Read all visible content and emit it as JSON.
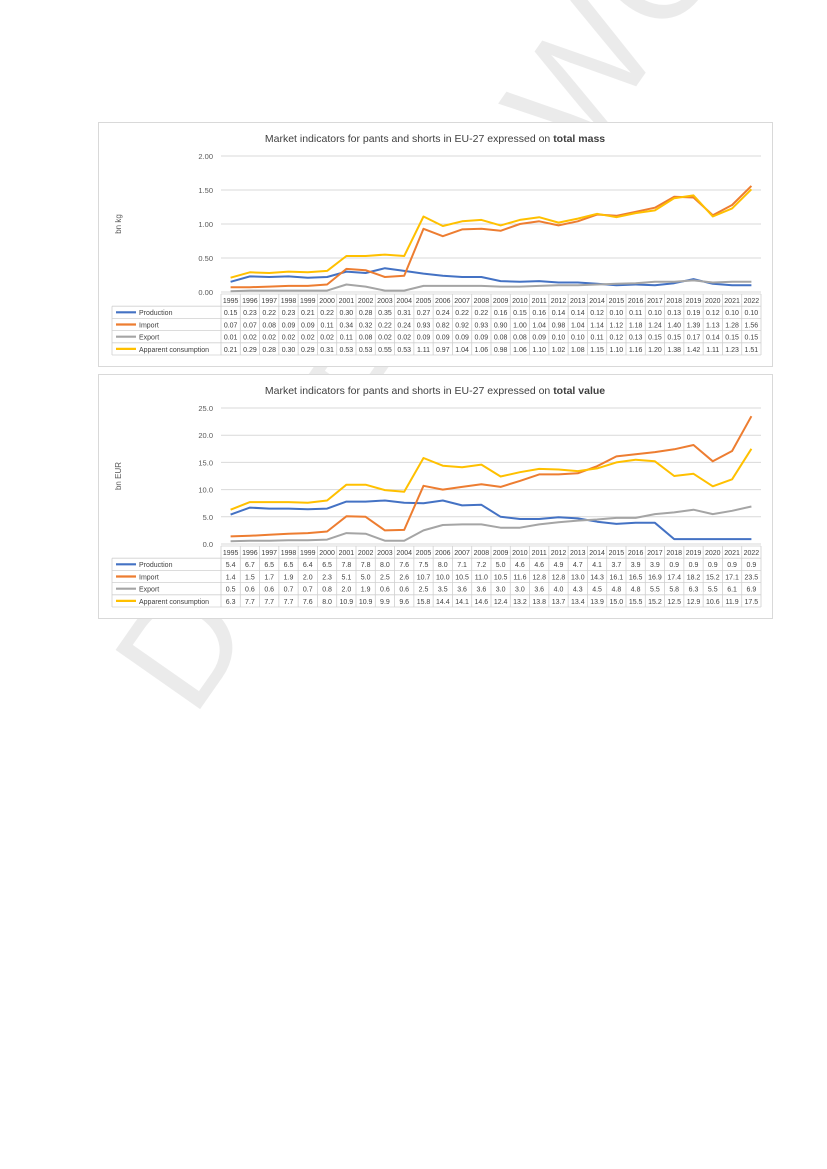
{
  "watermark": "DRAFT - WO",
  "chart_data": [
    {
      "type": "line",
      "title_prefix": "Market indicators for pants and shorts in EU-27 expressed on ",
      "title_bold": "total mass",
      "ylabel": "bn kg",
      "ylim": [
        0,
        2
      ],
      "yticks": [
        "0.00",
        "0.50",
        "1.00",
        "1.50",
        "2.00"
      ],
      "tick_values": [
        0,
        0.5,
        1,
        1.5,
        2
      ],
      "grid": true,
      "legend_placement": "table-below",
      "x": [
        "1995",
        "1996",
        "1997",
        "1998",
        "1999",
        "2000",
        "2001",
        "2002",
        "2003",
        "2004",
        "2005",
        "2006",
        "2007",
        "2008",
        "2009",
        "2010",
        "2011",
        "2012",
        "2013",
        "2014",
        "2015",
        "2016",
        "2017",
        "2018",
        "2019",
        "2020",
        "2021",
        "2022"
      ],
      "series": [
        {
          "name": "Production",
          "color": "#4472c4",
          "values": [
            0.15,
            0.23,
            0.22,
            0.23,
            0.21,
            0.22,
            0.3,
            0.28,
            0.35,
            0.31,
            0.27,
            0.24,
            0.22,
            0.22,
            0.16,
            0.15,
            0.16,
            0.14,
            0.14,
            0.12,
            0.1,
            0.11,
            0.1,
            0.13,
            0.19,
            0.12,
            0.1,
            0.1
          ],
          "labels": [
            "0.15",
            "0.23",
            "0.22",
            "0.23",
            "0.21",
            "0.22",
            "0.30",
            "0.28",
            "0.35",
            "0.31",
            "0.27",
            "0.24",
            "0.22",
            "0.22",
            "0.16",
            "0.15",
            "0.16",
            "0.14",
            "0.14",
            "0.12",
            "0.10",
            "0.11",
            "0.10",
            "0.13",
            "0.19",
            "0.12",
            "0.10",
            "0.10"
          ]
        },
        {
          "name": "Import",
          "color": "#ed7d31",
          "values": [
            0.07,
            0.07,
            0.08,
            0.09,
            0.09,
            0.11,
            0.34,
            0.32,
            0.22,
            0.24,
            0.93,
            0.82,
            0.92,
            0.93,
            0.9,
            1.0,
            1.04,
            0.98,
            1.04,
            1.14,
            1.12,
            1.18,
            1.24,
            1.4,
            1.39,
            1.13,
            1.28,
            1.56
          ],
          "labels": [
            "0.07",
            "0.07",
            "0.08",
            "0.09",
            "0.09",
            "0.11",
            "0.34",
            "0.32",
            "0.22",
            "0.24",
            "0.93",
            "0.82",
            "0.92",
            "0.93",
            "0.90",
            "1.00",
            "1.04",
            "0.98",
            "1.04",
            "1.14",
            "1.12",
            "1.18",
            "1.24",
            "1.40",
            "1.39",
            "1.13",
            "1.28",
            "1.56"
          ]
        },
        {
          "name": "Export",
          "color": "#a5a5a5",
          "values": [
            0.01,
            0.02,
            0.02,
            0.02,
            0.02,
            0.02,
            0.11,
            0.08,
            0.02,
            0.02,
            0.09,
            0.09,
            0.09,
            0.09,
            0.08,
            0.08,
            0.09,
            0.1,
            0.1,
            0.11,
            0.12,
            0.13,
            0.15,
            0.15,
            0.17,
            0.14,
            0.15,
            0.15
          ],
          "labels": [
            "0.01",
            "0.02",
            "0.02",
            "0.02",
            "0.02",
            "0.02",
            "0.11",
            "0.08",
            "0.02",
            "0.02",
            "0.09",
            "0.09",
            "0.09",
            "0.09",
            "0.08",
            "0.08",
            "0.09",
            "0.10",
            "0.10",
            "0.11",
            "0.12",
            "0.13",
            "0.15",
            "0.15",
            "0.17",
            "0.14",
            "0.15",
            "0.15"
          ]
        },
        {
          "name": "Apparent consumption",
          "color": "#ffc000",
          "values": [
            0.21,
            0.29,
            0.28,
            0.3,
            0.29,
            0.31,
            0.53,
            0.53,
            0.55,
            0.53,
            1.11,
            0.97,
            1.04,
            1.06,
            0.98,
            1.06,
            1.1,
            1.02,
            1.08,
            1.15,
            1.1,
            1.16,
            1.2,
            1.38,
            1.42,
            1.11,
            1.23,
            1.51
          ],
          "labels": [
            "0.21",
            "0.29",
            "0.28",
            "0.30",
            "0.29",
            "0.31",
            "0.53",
            "0.53",
            "0.55",
            "0.53",
            "1.11",
            "0.97",
            "1.04",
            "1.06",
            "0.98",
            "1.06",
            "1.10",
            "1.02",
            "1.08",
            "1.15",
            "1.10",
            "1.16",
            "1.20",
            "1.38",
            "1.42",
            "1.11",
            "1.23",
            "1.51"
          ]
        }
      ]
    },
    {
      "type": "line",
      "title_prefix": "Market indicators for pants and shorts in EU-27 expressed on ",
      "title_bold": "total value",
      "ylabel": "bn EUR",
      "ylim": [
        0,
        25
      ],
      "yticks": [
        "0.0",
        "5.0",
        "10.0",
        "15.0",
        "20.0",
        "25.0"
      ],
      "tick_values": [
        0,
        5,
        10,
        15,
        20,
        25
      ],
      "grid": true,
      "legend_placement": "table-below",
      "x": [
        "1995",
        "1996",
        "1997",
        "1998",
        "1999",
        "2000",
        "2001",
        "2002",
        "2003",
        "2004",
        "2005",
        "2006",
        "2007",
        "2008",
        "2009",
        "2010",
        "2011",
        "2012",
        "2013",
        "2014",
        "2015",
        "2016",
        "2017",
        "2018",
        "2019",
        "2020",
        "2021",
        "2022"
      ],
      "series": [
        {
          "name": "Production",
          "color": "#4472c4",
          "values": [
            5.4,
            6.7,
            6.5,
            6.5,
            6.4,
            6.5,
            7.8,
            7.8,
            8.0,
            7.6,
            7.5,
            8.0,
            7.1,
            7.2,
            5.0,
            4.6,
            4.6,
            4.9,
            4.7,
            4.1,
            3.7,
            3.9,
            3.9,
            0.9,
            0.9,
            0.9,
            0.9,
            0.9
          ],
          "labels": [
            "5.4",
            "6.7",
            "6.5",
            "6.5",
            "6.4",
            "6.5",
            "7.8",
            "7.8",
            "8.0",
            "7.6",
            "7.5",
            "8.0",
            "7.1",
            "7.2",
            "5.0",
            "4.6",
            "4.6",
            "4.9",
            "4.7",
            "4.1",
            "3.7",
            "3.9",
            "3.9",
            "0.9",
            "0.9",
            "0.9",
            "0.9",
            "0.9"
          ]
        },
        {
          "name": "Import",
          "color": "#ed7d31",
          "values": [
            1.4,
            1.5,
            1.7,
            1.9,
            2.0,
            2.3,
            5.1,
            5.0,
            2.5,
            2.6,
            10.7,
            10.0,
            10.5,
            11.0,
            10.5,
            11.6,
            12.8,
            12.8,
            13.0,
            14.3,
            16.1,
            16.5,
            16.9,
            17.4,
            18.2,
            15.2,
            17.1,
            23.5
          ],
          "labels": [
            "1.4",
            "1.5",
            "1.7",
            "1.9",
            "2.0",
            "2.3",
            "5.1",
            "5.0",
            "2.5",
            "2.6",
            "10.7",
            "10.0",
            "10.5",
            "11.0",
            "10.5",
            "11.6",
            "12.8",
            "12.8",
            "13.0",
            "14.3",
            "16.1",
            "16.5",
            "16.9",
            "17.4",
            "18.2",
            "15.2",
            "17.1",
            "23.5"
          ]
        },
        {
          "name": "Export",
          "color": "#a5a5a5",
          "values": [
            0.5,
            0.6,
            0.6,
            0.7,
            0.7,
            0.8,
            2.0,
            1.9,
            0.6,
            0.6,
            2.5,
            3.5,
            3.6,
            3.6,
            3.0,
            3.0,
            3.6,
            4.0,
            4.3,
            4.5,
            4.8,
            4.8,
            5.5,
            5.8,
            6.3,
            5.5,
            6.1,
            6.9
          ],
          "labels": [
            "0.5",
            "0.6",
            "0.6",
            "0.7",
            "0.7",
            "0.8",
            "2.0",
            "1.9",
            "0.6",
            "0.6",
            "2.5",
            "3.5",
            "3.6",
            "3.6",
            "3.0",
            "3.0",
            "3.6",
            "4.0",
            "4.3",
            "4.5",
            "4.8",
            "4.8",
            "5.5",
            "5.8",
            "6.3",
            "5.5",
            "6.1",
            "6.9"
          ]
        },
        {
          "name": "Apparent consumption",
          "color": "#ffc000",
          "values": [
            6.3,
            7.7,
            7.7,
            7.7,
            7.6,
            8.0,
            10.9,
            10.9,
            9.9,
            9.6,
            15.8,
            14.4,
            14.1,
            14.6,
            12.4,
            13.2,
            13.8,
            13.7,
            13.4,
            13.9,
            15.0,
            15.5,
            15.2,
            12.5,
            12.9,
            10.6,
            11.9,
            17.5
          ],
          "labels": [
            "6.3",
            "7.7",
            "7.7",
            "7.7",
            "7.6",
            "8.0",
            "10.9",
            "10.9",
            "9.9",
            "9.6",
            "15.8",
            "14.4",
            "14.1",
            "14.6",
            "12.4",
            "13.2",
            "13.8",
            "13.7",
            "13.4",
            "13.9",
            "15.0",
            "15.5",
            "15.2",
            "12.5",
            "12.9",
            "10.6",
            "11.9",
            "17.5"
          ]
        }
      ]
    }
  ]
}
